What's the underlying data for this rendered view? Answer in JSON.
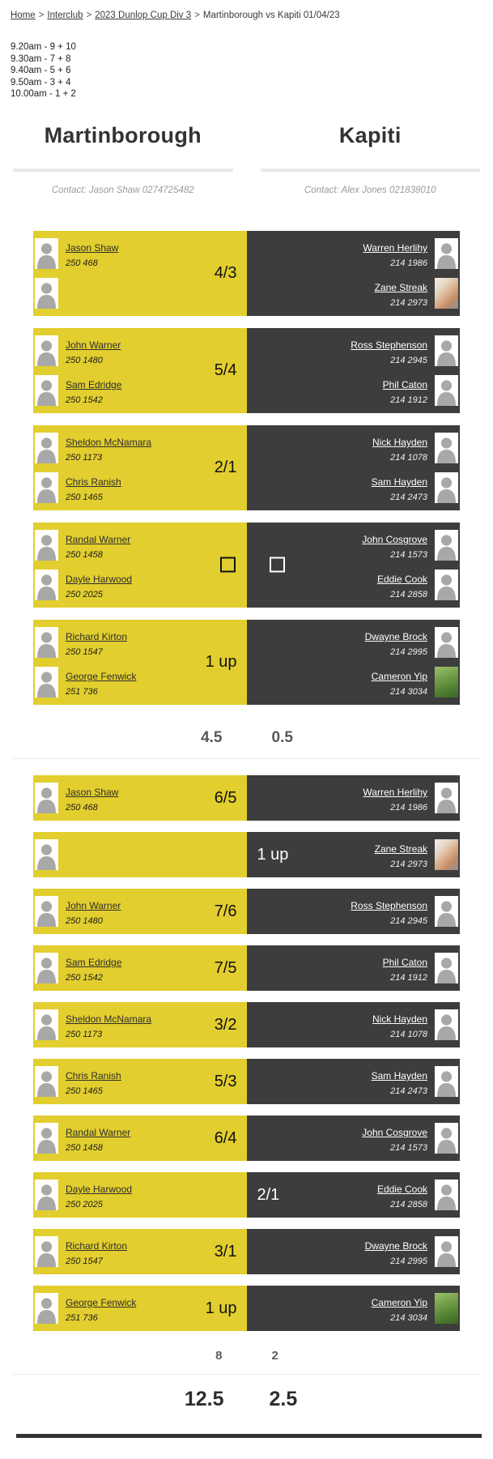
{
  "breadcrumb": {
    "links": [
      "Home",
      "Interclub",
      "2023 Dunlop Cup Div 3"
    ],
    "separator": ">",
    "current": "Martinborough vs Kapiti 01/04/23"
  },
  "tee_times": [
    "9.20am - 9 + 10",
    "9.30am - 7 + 8",
    "9.40am - 5 + 6",
    "9.50am - 3 + 4",
    "10.00am - 1 + 2"
  ],
  "teams": {
    "home": {
      "name": "Martinborough",
      "contact": "Contact: Jason Shaw 0274725482"
    },
    "away": {
      "name": "Kapiti",
      "contact": "Contact: Alex Jones 021838010"
    }
  },
  "colors": {
    "home_bg": "#e2ce2e",
    "away_bg": "#3d3d3d",
    "home_text": "#111111",
    "away_text": "#ffffff",
    "header_bar": "#e9e9e9"
  },
  "pairs_matches": [
    {
      "home": [
        {
          "name": "Jason Shaw",
          "number": "250 468"
        },
        {
          "name": "",
          "number": ""
        }
      ],
      "away": [
        {
          "name": "Warren Herlihy",
          "number": "214 1986"
        },
        {
          "name": "Zane Streak",
          "number": "214 2973",
          "photo": "portrait"
        }
      ],
      "result": {
        "type": "home",
        "text": "4/3"
      }
    },
    {
      "home": [
        {
          "name": "John Warner",
          "number": "250 1480"
        },
        {
          "name": "Sam Edridge",
          "number": "250 1542"
        }
      ],
      "away": [
        {
          "name": "Ross Stephenson",
          "number": "214 2945"
        },
        {
          "name": "Phil Caton",
          "number": "214 1912"
        }
      ],
      "result": {
        "type": "home",
        "text": "5/4"
      }
    },
    {
      "home": [
        {
          "name": "Sheldon McNamara",
          "number": "250 1173"
        },
        {
          "name": "Chris Ranish",
          "number": "250 1465"
        }
      ],
      "away": [
        {
          "name": "Nick Hayden",
          "number": "214 1078"
        },
        {
          "name": "Sam Hayden",
          "number": "214 2473"
        }
      ],
      "result": {
        "type": "home",
        "text": "2/1"
      }
    },
    {
      "home": [
        {
          "name": "Randal Warner",
          "number": "250 1458"
        },
        {
          "name": "Dayle Harwood",
          "number": "250 2025"
        }
      ],
      "away": [
        {
          "name": "John Cosgrove",
          "number": "214 1573"
        },
        {
          "name": "Eddie Cook",
          "number": "214 2858"
        }
      ],
      "result": {
        "type": "checkbox"
      }
    },
    {
      "home": [
        {
          "name": "Richard Kirton",
          "number": "250 1547"
        },
        {
          "name": "George Fenwick",
          "number": "251 736"
        }
      ],
      "away": [
        {
          "name": "Dwayne Brock",
          "number": "214 2995"
        },
        {
          "name": "Cameron Yip",
          "number": "214 3034",
          "photo": "golf"
        }
      ],
      "result": {
        "type": "home",
        "text": "1 up"
      }
    }
  ],
  "pairs_subtotal": {
    "home": "4.5",
    "away": "0.5"
  },
  "singles_matches": [
    {
      "home": [
        {
          "name": "Jason Shaw",
          "number": "250 468"
        }
      ],
      "away": [
        {
          "name": "Warren Herlihy",
          "number": "214 1986"
        }
      ],
      "result": {
        "type": "home",
        "text": "6/5"
      }
    },
    {
      "home": [
        {
          "name": "",
          "number": ""
        }
      ],
      "away": [
        {
          "name": "Zane Streak",
          "number": "214 2973",
          "photo": "portrait"
        }
      ],
      "result": {
        "type": "away",
        "text": "1 up"
      }
    },
    {
      "home": [
        {
          "name": "John Warner",
          "number": "250 1480"
        }
      ],
      "away": [
        {
          "name": "Ross Stephenson",
          "number": "214 2945"
        }
      ],
      "result": {
        "type": "home",
        "text": "7/6"
      }
    },
    {
      "home": [
        {
          "name": "Sam Edridge",
          "number": "250 1542"
        }
      ],
      "away": [
        {
          "name": "Phil Caton",
          "number": "214 1912"
        }
      ],
      "result": {
        "type": "home",
        "text": "7/5"
      }
    },
    {
      "home": [
        {
          "name": "Sheldon McNamara",
          "number": "250 1173"
        }
      ],
      "away": [
        {
          "name": "Nick Hayden",
          "number": "214 1078"
        }
      ],
      "result": {
        "type": "home",
        "text": "3/2"
      }
    },
    {
      "home": [
        {
          "name": "Chris Ranish",
          "number": "250 1465"
        }
      ],
      "away": [
        {
          "name": "Sam Hayden",
          "number": "214 2473"
        }
      ],
      "result": {
        "type": "home",
        "text": "5/3"
      }
    },
    {
      "home": [
        {
          "name": "Randal Warner",
          "number": "250 1458"
        }
      ],
      "away": [
        {
          "name": "John Cosgrove",
          "number": "214 1573"
        }
      ],
      "result": {
        "type": "home",
        "text": "6/4"
      }
    },
    {
      "home": [
        {
          "name": "Dayle Harwood",
          "number": "250 2025"
        }
      ],
      "away": [
        {
          "name": "Eddie Cook",
          "number": "214 2858"
        }
      ],
      "result": {
        "type": "away",
        "text": "2/1"
      }
    },
    {
      "home": [
        {
          "name": "Richard Kirton",
          "number": "250 1547"
        }
      ],
      "away": [
        {
          "name": "Dwayne Brock",
          "number": "214 2995"
        }
      ],
      "result": {
        "type": "home",
        "text": "3/1"
      }
    },
    {
      "home": [
        {
          "name": "George Fenwick",
          "number": "251 736"
        }
      ],
      "away": [
        {
          "name": "Cameron Yip",
          "number": "214 3034",
          "photo": "golf"
        }
      ],
      "result": {
        "type": "home",
        "text": "1 up"
      }
    }
  ],
  "singles_subtotal": {
    "home": "8",
    "away": "2"
  },
  "total": {
    "home": "12.5",
    "away": "2.5"
  }
}
